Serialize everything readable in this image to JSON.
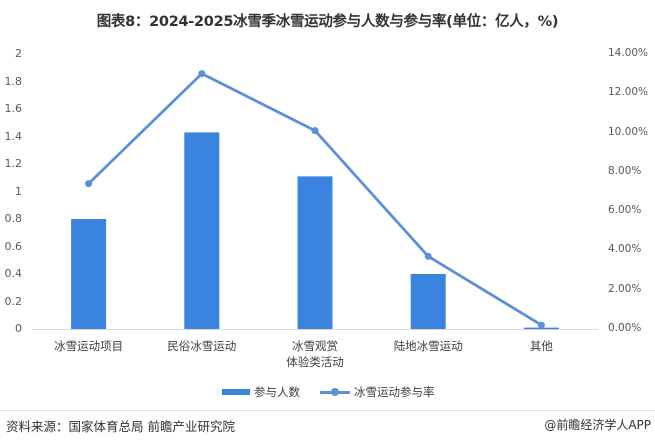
{
  "title": "图表8：2024-2025冰雪季冰雪运动参与人数与参与率(单位：亿人，%)",
  "chart_data": {
    "type": "bar+line",
    "title": "图表8：2024-2025冰雪季冰雪运动参与人数与参与率(单位：亿人，%)",
    "categories": [
      "冰雪运动项目",
      "民俗冰雪运动",
      "冰雪观赏体验类活动",
      "陆地冰雪运动",
      "其他"
    ],
    "category_labels": [
      [
        "冰雪运动项目"
      ],
      [
        "民俗冰雪运动"
      ],
      [
        "冰雪观赏",
        "体验类活动"
      ],
      [
        "陆地冰雪运动"
      ],
      [
        "其他"
      ]
    ],
    "series": [
      {
        "name": "参与人数",
        "type": "bar",
        "axis": "left",
        "color": "#3A84E0",
        "values": [
          0.8,
          1.43,
          1.11,
          0.4,
          0.01
        ]
      },
      {
        "name": "冰雪运动参与率",
        "type": "line",
        "axis": "right",
        "color": "#5B8FD6",
        "values": [
          7.4,
          13.0,
          10.1,
          3.7,
          0.2
        ]
      }
    ],
    "y_left": {
      "ylim": [
        0,
        2
      ],
      "ticks": [
        "0",
        "0.2",
        "0.4",
        "0.6",
        "0.8",
        "1",
        "1.2",
        "1.4",
        "1.6",
        "1.8",
        "2"
      ]
    },
    "y_right": {
      "ylim": [
        0,
        14
      ],
      "ticks": [
        "0.00%",
        "2.00%",
        "4.00%",
        "6.00%",
        "8.00%",
        "10.00%",
        "12.00%",
        "14.00%"
      ]
    },
    "grid": false,
    "legend_position": "bottom"
  },
  "legend": {
    "bar_label": "参与人数",
    "line_label": "冰雪运动参与率"
  },
  "footer": {
    "source": "资料来源：国家体育总局 前瞻产业研究院",
    "credit": "@前瞻经济学人APP"
  }
}
